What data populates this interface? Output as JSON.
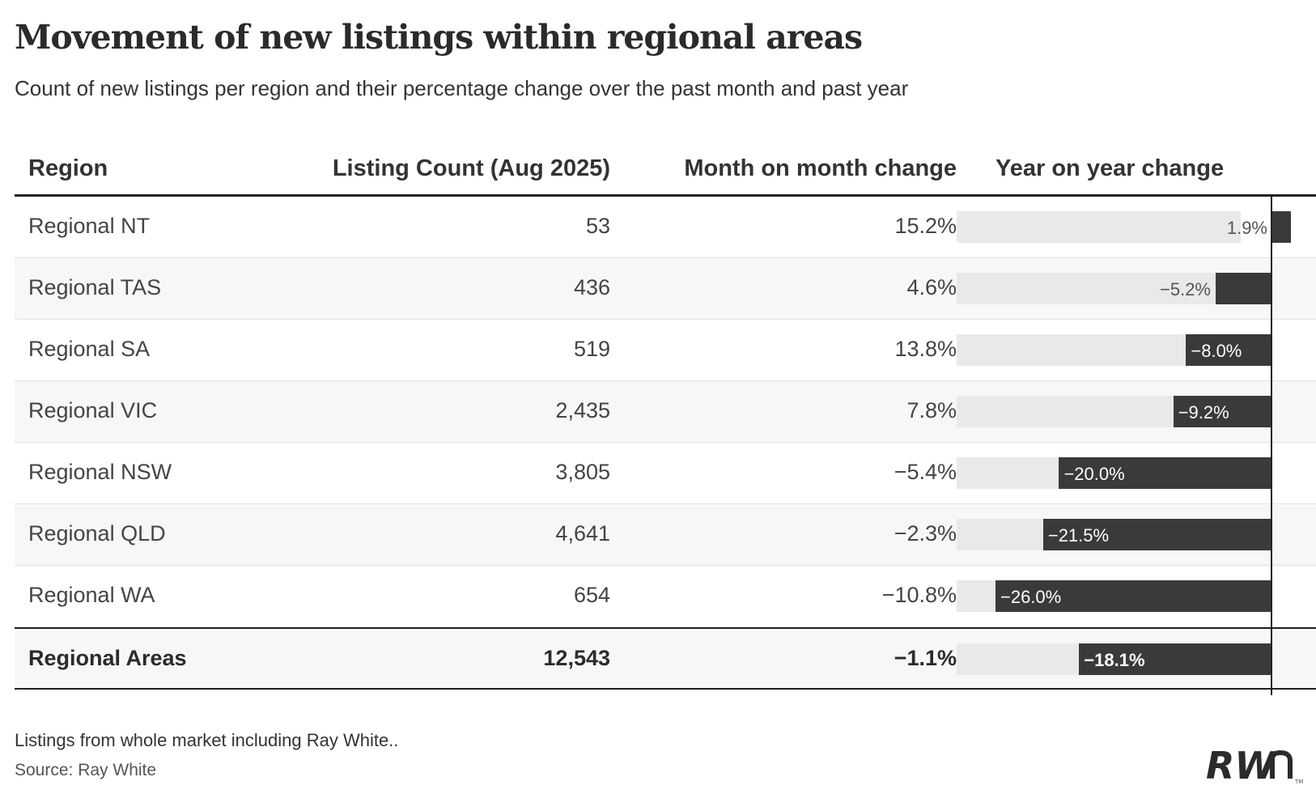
{
  "title": "Movement of new listings within regional areas",
  "subtitle": "Count of new listings per region and their percentage change over the past month and past year",
  "headers": {
    "region": "Region",
    "count": "Listing Count (Aug 2025)",
    "mom": "Month on month change",
    "yoy": "Year on year change"
  },
  "rows": [
    {
      "region": "Regional NT",
      "count": "53",
      "mom": "15.2%",
      "yoy": 1.9,
      "yoy_label": "1.9%"
    },
    {
      "region": "Regional TAS",
      "count": "436",
      "mom": "4.6%",
      "yoy": -5.2,
      "yoy_label": "−5.2%"
    },
    {
      "region": "Regional SA",
      "count": "519",
      "mom": "13.8%",
      "yoy": -8.0,
      "yoy_label": "−8.0%"
    },
    {
      "region": "Regional VIC",
      "count": "2,435",
      "mom": "7.8%",
      "yoy": -9.2,
      "yoy_label": "−9.2%"
    },
    {
      "region": "Regional NSW",
      "count": "3,805",
      "mom": "−5.4%",
      "yoy": -20.0,
      "yoy_label": "−20.0%"
    },
    {
      "region": "Regional QLD",
      "count": "4,641",
      "mom": "−2.3%",
      "yoy": -21.5,
      "yoy_label": "−21.5%"
    },
    {
      "region": "Regional WA",
      "count": "654",
      "mom": "−10.8%",
      "yoy": -26.0,
      "yoy_label": "−26.0%"
    }
  ],
  "total": {
    "region": "Regional Areas",
    "count": "12,543",
    "mom": "−1.1%",
    "yoy": -18.1,
    "yoy_label": "−18.1%"
  },
  "chart_data": {
    "type": "table",
    "columns": [
      "Region",
      "Listing Count (Aug 2025)",
      "Month on month change",
      "Year on year change"
    ],
    "rows": [
      [
        "Regional NT",
        53,
        15.2,
        1.9
      ],
      [
        "Regional TAS",
        436,
        4.6,
        -5.2
      ],
      [
        "Regional SA",
        519,
        13.8,
        -8.0
      ],
      [
        "Regional VIC",
        2435,
        7.8,
        -9.2
      ],
      [
        "Regional NSW",
        3805,
        -5.4,
        -20.0
      ],
      [
        "Regional QLD",
        4641,
        -2.3,
        -21.5
      ],
      [
        "Regional WA",
        654,
        -10.8,
        -26.0
      ],
      [
        "Regional Areas",
        12543,
        -1.1,
        -18.1
      ]
    ],
    "yoy_bar_range": [
      -26.0,
      1.9
    ],
    "bar_color": "#3a3a3a",
    "bar_background": "#e9e9e9"
  },
  "note": "Listings from whole market including Ray White..",
  "source": "Source: Ray White",
  "logo": {
    "text": "RWn",
    "mark": "TM"
  }
}
